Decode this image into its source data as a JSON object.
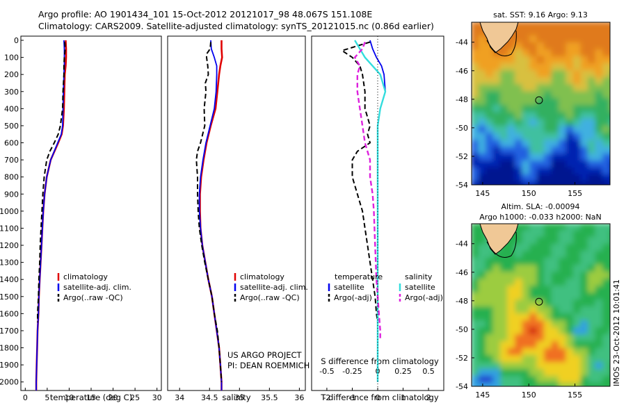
{
  "header": {
    "title_line1": "Argo profile: AO 1901434_101 15-Oct-2012 20121017_98 48.067S 151.108E",
    "title_line2": "Climatology: CARS2009. Satellite-adjusted climatology: synTS_20121015.nc (0.86d earlier)"
  },
  "colors": {
    "climatology": "#e00000",
    "satellite": "#0000ee",
    "argo": "#000000",
    "sal_satellite": "#33dddd",
    "sal_argo": "#dd22dd"
  },
  "chart_data": [
    {
      "id": "temperature",
      "type": "line",
      "xlabel": "temperature (deg C)",
      "ylim": [
        2050,
        0
      ],
      "xlim": [
        -1,
        31
      ],
      "xticks": [
        0,
        5,
        10,
        15,
        20,
        25,
        30
      ],
      "yticks": [
        0,
        100,
        200,
        300,
        400,
        500,
        600,
        700,
        800,
        900,
        1000,
        1100,
        1200,
        1300,
        1400,
        1500,
        1600,
        1700,
        1800,
        1900,
        2000
      ],
      "legend": [
        "climatology",
        "satellite-adj. clim.",
        "Argo(..raw -QC)"
      ],
      "series": [
        {
          "name": "climatology",
          "style": "red",
          "depth": [
            0,
            50,
            100,
            150,
            200,
            300,
            400,
            500,
            550,
            600,
            700,
            800,
            900,
            1000,
            1100,
            1200,
            1300,
            1400,
            1500,
            1600,
            1700,
            1800,
            1900,
            2000,
            2050
          ],
          "values": [
            9.2,
            9.3,
            9.3,
            9.2,
            9.0,
            8.9,
            8.8,
            8.6,
            8.3,
            7.5,
            5.8,
            4.9,
            4.4,
            4.1,
            3.9,
            3.7,
            3.5,
            3.3,
            3.1,
            3.0,
            2.8,
            2.7,
            2.6,
            2.5,
            2.5
          ]
        },
        {
          "name": "satellite-adj. clim.",
          "style": "blue",
          "depth": [
            0,
            50,
            100,
            150,
            200,
            300,
            400,
            500,
            550,
            600,
            700,
            800,
            900,
            1000,
            1100,
            1200,
            1300,
            1400,
            1500,
            1600,
            1700,
            1800,
            1900,
            2000,
            2050
          ],
          "values": [
            8.8,
            8.9,
            8.9,
            8.9,
            8.8,
            8.7,
            8.6,
            8.5,
            8.2,
            7.4,
            5.8,
            4.9,
            4.4,
            4.1,
            3.9,
            3.7,
            3.5,
            3.3,
            3.1,
            3.0,
            2.8,
            2.7,
            2.6,
            2.5,
            2.5
          ]
        },
        {
          "name": "Argo(..raw -QC)",
          "style": "black-dash",
          "depth": [
            10,
            50,
            100,
            150,
            200,
            300,
            400,
            500,
            550,
            600,
            650,
            700,
            800,
            900,
            1000,
            1100,
            1200,
            1300,
            1400,
            1500,
            1600,
            1650
          ],
          "values": [
            9.0,
            9.1,
            8.9,
            8.8,
            8.8,
            8.6,
            8.5,
            8.0,
            7.5,
            6.6,
            5.6,
            4.9,
            4.3,
            4.0,
            3.8,
            3.6,
            3.4,
            3.3,
            3.1,
            3.0,
            2.8,
            2.8
          ]
        }
      ]
    },
    {
      "id": "salinity",
      "type": "line",
      "xlabel": "salinity",
      "ylim": [
        2050,
        0
      ],
      "xlim": [
        33.8,
        36.1
      ],
      "xticks": [
        34,
        34.5,
        35,
        35.5,
        36
      ],
      "legend": [
        "climatology",
        "satellite-adj. clim.",
        "Argo(..raw -QC)"
      ],
      "footnote": [
        "US ARGO PROJECT",
        "PI: DEAN ROEMMICH"
      ],
      "series": [
        {
          "name": "climatology",
          "style": "red",
          "depth": [
            0,
            50,
            100,
            150,
            200,
            300,
            400,
            500,
            600,
            700,
            800,
            900,
            1000,
            1100,
            1200,
            1300,
            1400,
            1500,
            1600,
            1700,
            1800,
            1900,
            2000,
            2050
          ],
          "values": [
            34.7,
            34.7,
            34.71,
            34.68,
            34.66,
            34.63,
            34.6,
            34.52,
            34.45,
            34.4,
            34.36,
            34.34,
            34.34,
            34.35,
            34.38,
            34.43,
            34.48,
            34.54,
            34.58,
            34.62,
            34.66,
            34.68,
            34.7,
            34.7
          ]
        },
        {
          "name": "satellite-adj. clim.",
          "style": "blue",
          "depth": [
            0,
            50,
            100,
            150,
            200,
            300,
            400,
            500,
            600,
            700,
            800,
            900,
            1000,
            1100,
            1200,
            1300,
            1400,
            1500,
            1600,
            1700,
            1800,
            1900,
            2000,
            2050
          ],
          "values": [
            34.52,
            34.53,
            34.58,
            34.62,
            34.62,
            34.61,
            34.58,
            34.51,
            34.44,
            34.39,
            34.35,
            34.33,
            34.33,
            34.35,
            34.38,
            34.43,
            34.48,
            34.54,
            34.58,
            34.62,
            34.66,
            34.68,
            34.7,
            34.7
          ]
        },
        {
          "name": "Argo(..raw -QC)",
          "style": "black-dash",
          "depth": [
            10,
            50,
            80,
            100,
            150,
            200,
            250,
            300,
            400,
            500,
            600,
            650,
            700,
            800,
            900,
            1000,
            1100,
            1200,
            1300,
            1400,
            1500,
            1600,
            1700,
            1800,
            1900,
            2000
          ],
          "values": [
            34.52,
            34.51,
            34.45,
            34.45,
            34.47,
            34.48,
            34.43,
            34.44,
            34.41,
            34.42,
            34.35,
            34.3,
            34.28,
            34.3,
            34.3,
            34.31,
            34.33,
            34.37,
            34.42,
            34.48,
            34.54,
            34.58,
            34.63,
            34.66,
            34.68,
            34.7
          ]
        }
      ]
    },
    {
      "id": "difference",
      "type": "line",
      "xlabel": "T difference from climatology",
      "xlabel_top": "S difference from climatology",
      "xlim": [
        -2.6,
        2.6
      ],
      "xticks": [
        -2,
        -1,
        0,
        1,
        2
      ],
      "s_ticks": [
        "-0.5",
        "-0.25",
        "0",
        "0.25",
        "0.5"
      ],
      "legend_titles": [
        "temperature",
        "salinity"
      ],
      "legend_t": [
        "satellite",
        "Argo(-adj)"
      ],
      "legend_s": [
        "satellite",
        "Argo(-adj)"
      ],
      "series": [
        {
          "name": "temperature satellite",
          "style": "blue",
          "depth": [
            0,
            50,
            100,
            150,
            200,
            300,
            400,
            500,
            600,
            700,
            800,
            900,
            1000,
            1200,
            1400,
            1600,
            1800,
            2000
          ],
          "values": [
            -0.3,
            -0.2,
            -0.05,
            0.15,
            0.25,
            0.3,
            0.1,
            0.0,
            0.0,
            0.0,
            0.0,
            0.0,
            0.0,
            0.0,
            0.0,
            0.0,
            0.0,
            0.0
          ]
        },
        {
          "name": "temperature Argo(-adj)",
          "style": "black-dash",
          "depth": [
            10,
            60,
            100,
            150,
            200,
            300,
            400,
            500,
            550,
            600,
            650,
            700,
            800,
            900,
            1000,
            1100,
            1200,
            1300,
            1400,
            1500,
            1600,
            1650
          ],
          "values": [
            -0.3,
            -1.4,
            -1.0,
            -0.7,
            -0.6,
            -0.5,
            -0.5,
            -0.3,
            -0.4,
            -0.3,
            -0.8,
            -1.0,
            -1.0,
            -0.8,
            -0.6,
            -0.5,
            -0.4,
            -0.3,
            -0.2,
            -0.1,
            -0.05,
            0.0
          ]
        },
        {
          "name": "salinity satellite",
          "style": "cyan",
          "depth": [
            0,
            50,
            100,
            150,
            200,
            300,
            400,
            500,
            600,
            700,
            800,
            900,
            1000,
            1200,
            1400,
            1600,
            1800,
            2000
          ],
          "values": [
            -0.9,
            -0.7,
            -0.5,
            -0.2,
            0.1,
            0.3,
            0.1,
            0.0,
            0.0,
            0.0,
            0.0,
            0.0,
            0.0,
            0.0,
            0.0,
            0.0,
            0.0,
            0.0
          ]
        },
        {
          "name": "salinity Argo(-adj)",
          "style": "magenta-dash",
          "depth": [
            10,
            50,
            100,
            150,
            200,
            300,
            400,
            500,
            600,
            700,
            800,
            900,
            1000,
            1200,
            1400,
            1500,
            1600,
            1700,
            1750
          ],
          "values": [
            -0.5,
            -0.6,
            -0.9,
            -0.7,
            -0.8,
            -0.8,
            -0.7,
            -0.6,
            -0.5,
            -0.3,
            -0.3,
            -0.2,
            -0.15,
            -0.1,
            -0.05,
            0.0,
            0.05,
            0.1,
            0.1
          ]
        }
      ]
    },
    {
      "id": "sst_map",
      "type": "heatmap",
      "title": "sat. SST: 9.16 Argo: 9.13",
      "xticks": [
        145,
        150,
        155
      ],
      "yticks": [
        -44,
        -46,
        -48,
        -50,
        -52,
        -54
      ],
      "xlim": [
        143.8,
        158.8
      ],
      "ylim": [
        -54,
        -42.6
      ],
      "argo_position": [
        151.108,
        -48.067
      ]
    },
    {
      "id": "sla_map",
      "type": "heatmap",
      "title_line1": "Altim. SLA: -0.00094",
      "title_line2": "Argo h1000: -0.033 h2000: NaN",
      "xticks": [
        145,
        150,
        155
      ],
      "yticks": [
        -44,
        -46,
        -48,
        -50,
        -52,
        -54
      ],
      "xlim": [
        143.8,
        158.8
      ],
      "ylim": [
        -54,
        -42.6
      ],
      "argo_position": [
        151.108,
        -48.067
      ]
    }
  ],
  "stamp": "IMOS 23-Oct-2012 10:01:41"
}
